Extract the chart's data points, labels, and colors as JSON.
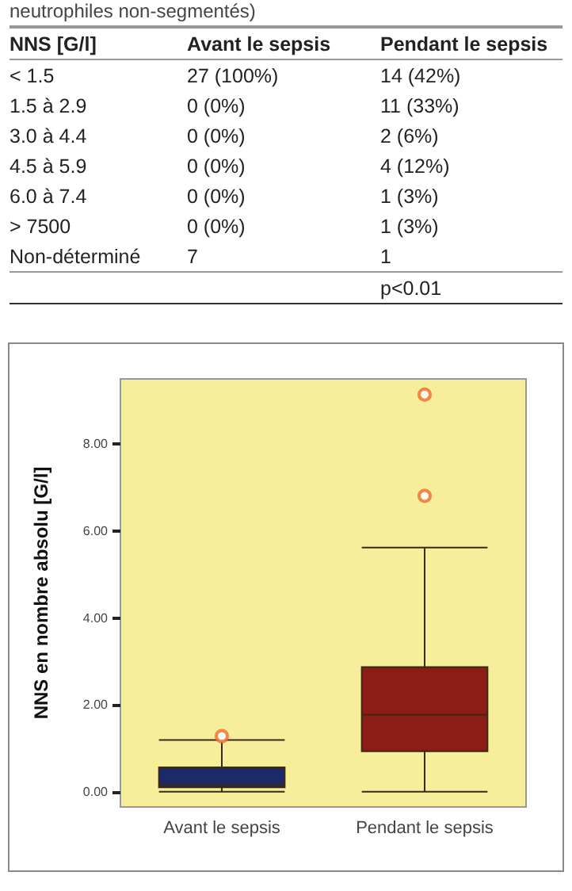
{
  "chart_data": [
    {
      "type": "other",
      "title": "neutrophiles non-segmentés)",
      "annotations": [
        "NNS [G/l]",
        "Avant le sepsis",
        "Pendant le sepsis",
        "< 1.5",
        "27 (100%)",
        "14 (42%)",
        "1.5 à 2.9",
        "0 (0%)",
        "11 (33%)",
        "3.0 à 4.4",
        "0 (0%)",
        "2 (6%)",
        "4.5 à 5.9",
        "0 (0%)",
        "4 (12%)",
        "6.0 à 7.4",
        "0 (0%)",
        "1 (3%)",
        "> 7500",
        "0 (0%)",
        "1 (3%)",
        "Non-déterminé",
        "7",
        "1",
        "p<0.01"
      ]
    },
    {
      "type": "box",
      "ylabel": "NNS en nombre absolu [G/l]",
      "categories": [
        "Avant le sepsis",
        "Pendant le sepsis"
      ],
      "colors": [
        "#1b2a6b",
        "#8e1c16"
      ],
      "ylim": [
        -0.35,
        9.5
      ],
      "yticks": [
        {
          "value": 0,
          "label": "0.00"
        },
        {
          "value": 2,
          "label": "2.00"
        },
        {
          "value": 4,
          "label": "4.00"
        },
        {
          "value": 6,
          "label": "6.00"
        },
        {
          "value": 8,
          "label": "8.00"
        }
      ],
      "grid": false,
      "boxes": [
        {
          "low": 0,
          "q1": 0.1,
          "median": 0.17,
          "q3": 0.56,
          "high": 1.19,
          "outliers": [
            1.28
          ]
        },
        {
          "low": 0,
          "q1": 0.93,
          "median": 1.77,
          "q3": 2.87,
          "high": 5.62,
          "outliers": [
            6.81,
            9.14
          ]
        }
      ]
    }
  ]
}
